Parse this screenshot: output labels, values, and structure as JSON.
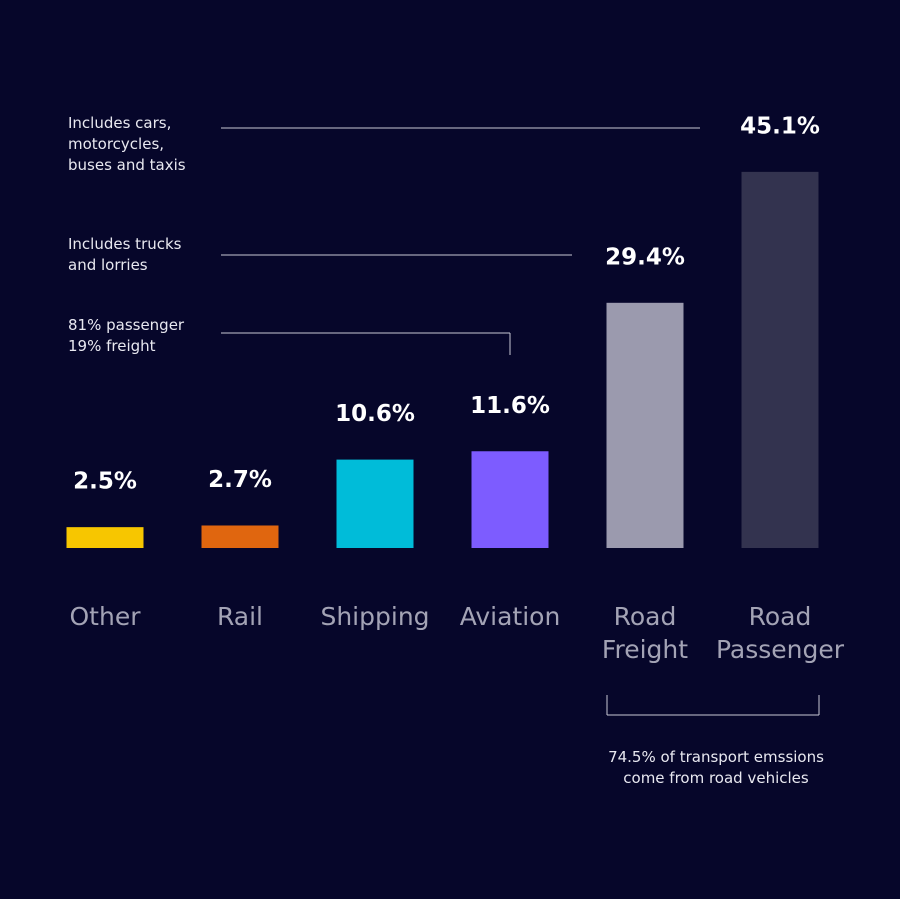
{
  "chart_data": {
    "type": "bar",
    "categories": [
      "Other",
      "Rail",
      "Shipping",
      "Aviation",
      "Road Freight",
      "Road Passenger"
    ],
    "values": [
      2.5,
      2.7,
      10.6,
      11.6,
      29.4,
      45.1
    ],
    "value_labels": [
      "2.5%",
      "2.7%",
      "10.6%",
      "11.6%",
      "29.4%",
      "45.1%"
    ],
    "colors": [
      "#f7c600",
      "#e0660f",
      "#00bcd9",
      "#7d5cff",
      "#9b9aae",
      "#33334f"
    ],
    "annotations": [
      "Includes cars, motorcycles, buses and taxis",
      "Includes trucks and lorries",
      "81% passenger 19% freight",
      "74.5% of transport emssions come from road vehicles"
    ]
  }
}
